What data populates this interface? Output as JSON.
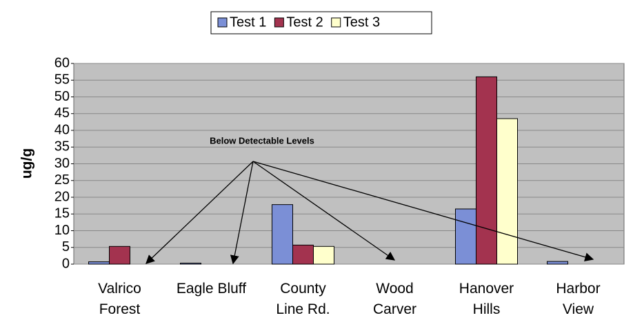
{
  "chart_data": {
    "type": "bar",
    "y_label": "ug/g",
    "annotation": "Below Detectable Levels",
    "categories": [
      "Valrico Forest",
      "Eagle Bluff",
      "County Line Rd.",
      "Wood Carver",
      "Hanover Hills",
      "Harbor View"
    ],
    "series": [
      {
        "name": "Test 1",
        "color": "#7b8fd6",
        "values": [
          0.7,
          0.3,
          17.8,
          0,
          16.5,
          0.8
        ]
      },
      {
        "name": "Test 2",
        "color": "#a3334f",
        "values": [
          5.3,
          0,
          5.7,
          0,
          56,
          0
        ]
      },
      {
        "name": "Test 3",
        "color": "#ffffcc",
        "values": [
          0,
          0,
          5.3,
          0,
          43.5,
          0
        ]
      }
    ],
    "ylim": [
      0,
      60
    ],
    "yticks": [
      0,
      5,
      10,
      15,
      20,
      25,
      30,
      35,
      40,
      45,
      50,
      55,
      60
    ],
    "grid": true,
    "legend": "top"
  }
}
